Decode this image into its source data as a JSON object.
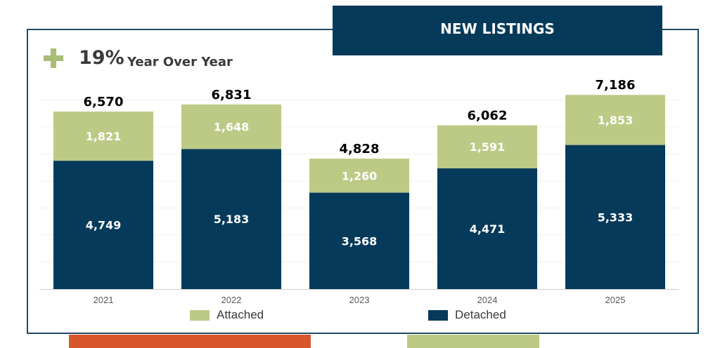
{
  "header": {
    "title": "NEW LISTINGS"
  },
  "summary": {
    "pct": "19%",
    "label": "Year Over Year"
  },
  "colors": {
    "attached": "#bcca86",
    "detached": "#063a5a",
    "header": "#063a5a",
    "accent_orange": "#d9552c"
  },
  "icons": {
    "plus": "plus-icon"
  },
  "chart_data": {
    "type": "bar",
    "stacked": true,
    "categories": [
      "2021",
      "2022",
      "2023",
      "2024",
      "2025"
    ],
    "series": [
      {
        "name": "Detached",
        "values": [
          4749,
          5183,
          3568,
          4471,
          5333
        ]
      },
      {
        "name": "Attached",
        "values": [
          1821,
          1648,
          1260,
          1591,
          1853
        ]
      }
    ],
    "totals": [
      6570,
      6831,
      4828,
      6062,
      7186
    ],
    "value_labels": {
      "Detached": [
        "4,749",
        "5,183",
        "3,568",
        "4,471",
        "5,333"
      ],
      "Attached": [
        "1,821",
        "1,648",
        "1,260",
        "1,591",
        "1,853"
      ],
      "totals": [
        "6,570",
        "6,831",
        "4,828",
        "6,062",
        "7,186"
      ]
    },
    "ylim": [
      0,
      7400
    ],
    "legend": "bottom",
    "grid": true
  },
  "legend": {
    "attached_label": "Attached",
    "detached_label": "Detached"
  }
}
